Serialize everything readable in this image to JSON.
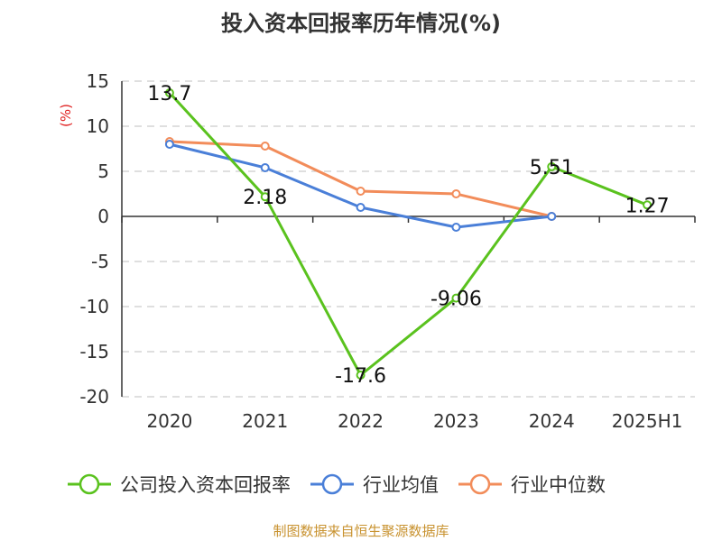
{
  "chart_data": {
    "type": "line",
    "title": "投入资本回报率历年情况(%)",
    "unit_label": "(%)",
    "categories": [
      "2020",
      "2021",
      "2022",
      "2023",
      "2024",
      "2025H1"
    ],
    "ylim": [
      -20,
      15
    ],
    "yticks": [
      15,
      10,
      5,
      0,
      -5,
      -10,
      -15,
      -20
    ],
    "grid": true,
    "legend_position": "bottom",
    "series": [
      {
        "name": "公司投入资本回报率",
        "color": "#5ac21e",
        "values": [
          13.7,
          2.18,
          -17.6,
          -9.06,
          5.51,
          1.27
        ],
        "labels": [
          "13.7",
          "2.18",
          "-17.6",
          "-9.06",
          "5.51",
          "1.27"
        ]
      },
      {
        "name": "行业均值",
        "color": "#4a7fd8",
        "values": [
          8.0,
          5.4,
          1.0,
          -1.2,
          0.0,
          null
        ]
      },
      {
        "name": "行业中位数",
        "color": "#f28c5a",
        "values": [
          8.3,
          7.8,
          2.8,
          2.5,
          0.0,
          null
        ]
      }
    ]
  },
  "footer": {
    "source": "制图数据来自恒生聚源数据库"
  }
}
